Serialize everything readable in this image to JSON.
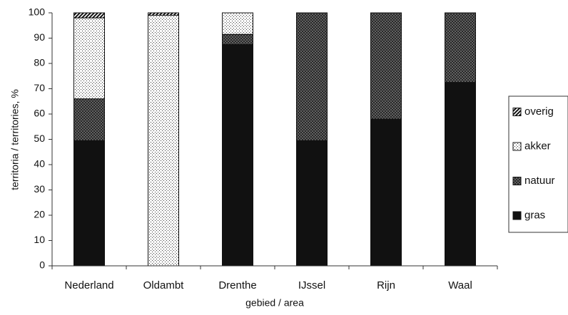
{
  "chart_data": {
    "type": "stacked_bar",
    "ylabel": "territoria / territories, %",
    "xlabel": "gebied / area",
    "categories": [
      "Nederland",
      "Oldambt",
      "Drenthe",
      "IJssel",
      "Rijn",
      "Waal"
    ],
    "series": [
      {
        "name": "gras",
        "color": "#111111",
        "pattern": "solid",
        "values": [
          49.5,
          0,
          87.5,
          49.5,
          58,
          72.5
        ]
      },
      {
        "name": "natuur",
        "color": "#111111",
        "pattern": "crosshatch",
        "values": [
          16.5,
          0,
          4,
          50.5,
          42,
          27.5
        ]
      },
      {
        "name": "akker",
        "color": "#111111",
        "pattern": "dots",
        "values": [
          32,
          99,
          8.5,
          0,
          0,
          0
        ]
      },
      {
        "name": "overig",
        "color": "#111111",
        "pattern": "diagonal",
        "values": [
          2,
          1,
          0,
          0,
          0,
          0
        ]
      }
    ],
    "ylim": [
      0,
      100
    ],
    "yticks": [
      0,
      10,
      20,
      30,
      40,
      50,
      60,
      70,
      80,
      90,
      100
    ],
    "grid": false,
    "legend": "right"
  }
}
